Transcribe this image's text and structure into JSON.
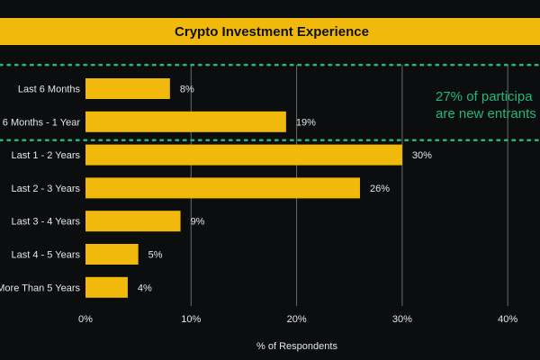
{
  "colors": {
    "background": "#0c0d0f",
    "bar": "#f0b90b",
    "title_bar": "#f0b90b",
    "annotation": "#1fb97a",
    "grid": "#6a6a6a",
    "text": "#e6e6e6"
  },
  "chart_data": {
    "type": "bar",
    "orientation": "horizontal",
    "title": "Crypto Investment Experience",
    "xlabel": "% of Respondents",
    "ylabel": "",
    "xlim": [
      0,
      40
    ],
    "x_ticks": [
      "0%",
      "10%",
      "20%",
      "30%",
      "40%"
    ],
    "categories": [
      "Last 6 Months",
      "6 Months - 1 Year",
      "Last 1 - 2 Years",
      "Last 2 - 3 Years",
      "Last 3 - 4 Years",
      "Last 4 - 5 Years",
      "More Than 5 Years"
    ],
    "values": [
      8,
      19,
      30,
      26,
      9,
      5,
      4
    ],
    "data_labels": [
      "8%",
      "19%",
      "30%",
      "26%",
      "9%",
      "5%",
      "4%"
    ],
    "grid": "vertical",
    "annotation": {
      "lines": [
        "27% of participa",
        "are new entrants"
      ],
      "bracket_categories": [
        "Last 6 Months",
        "6 Months - 1 Year"
      ]
    }
  }
}
